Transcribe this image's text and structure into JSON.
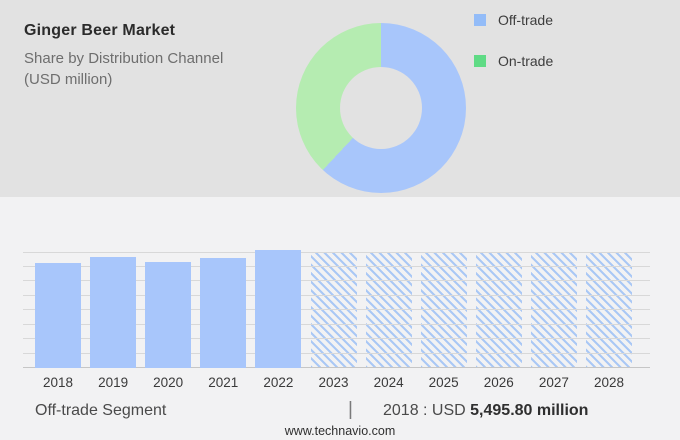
{
  "theme": {
    "panel_bg": "#e2e2e2",
    "page_bg": "#f2f2f3",
    "grid_color": "#d8d8d8",
    "axis_color": "#c6c6c6"
  },
  "header": {
    "title": "Ginger Beer Market",
    "subtitle_line1": "Share by Distribution Channel",
    "subtitle_line2": "(USD million)"
  },
  "legend": {
    "items": [
      {
        "label": "Off-trade",
        "color": "#93bcf8"
      },
      {
        "label": "On-trade",
        "color": "#5fdb85"
      }
    ]
  },
  "chart_data": [
    {
      "type": "pie",
      "subtype": "donut",
      "title": "Ginger Beer Market — Share by Distribution Channel (USD million)",
      "legend_position": "right",
      "series": [
        {
          "name": "Off-trade",
          "pct": 62,
          "color": "#a8c6fb"
        },
        {
          "name": "On-trade",
          "pct": 38,
          "color": "#b5ecb1"
        }
      ]
    },
    {
      "type": "bar",
      "title": "Ginger Beer Market by year (USD million)",
      "categories": [
        "2018",
        "2019",
        "2020",
        "2021",
        "2022",
        "2023",
        "2024",
        "2025",
        "2026",
        "2027",
        "2028"
      ],
      "values": [
        5495.8,
        5810,
        5550,
        5760,
        6180,
        null,
        null,
        null,
        null,
        null,
        null
      ],
      "forecast": [
        false,
        false,
        false,
        false,
        false,
        true,
        true,
        true,
        true,
        true,
        true
      ],
      "labeled_point": {
        "category": "2018",
        "label": "2018 : USD 5,495.80 million"
      },
      "ylim": [
        0,
        6500
      ],
      "grid": true,
      "bar_color": "#a8c6fb",
      "hatch_color": "#aac8f5",
      "note": "2023-2028 shown as full-height hatched forecast placeholders"
    }
  ],
  "footer": {
    "segment_label": "Off-trade Segment",
    "separator": "|",
    "value_prefix": "2018 : USD ",
    "value_bold": "5,495.80 million",
    "website": "www.technavio.com"
  }
}
